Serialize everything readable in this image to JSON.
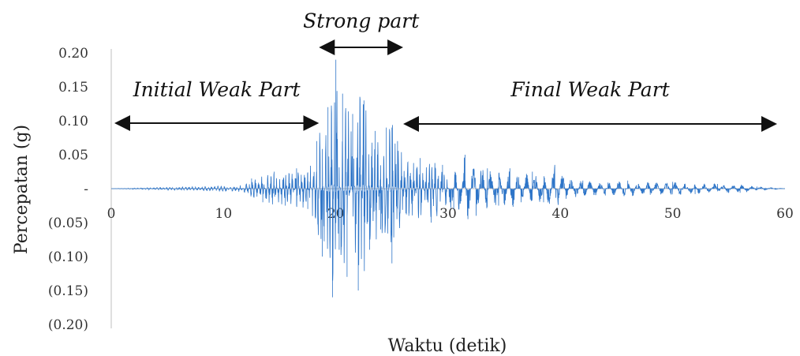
{
  "chart_data": {
    "type": "line",
    "title": "",
    "xlabel": "Waktu (detik)",
    "ylabel": "Percepatan (g)",
    "xlim": [
      0,
      60
    ],
    "ylim": [
      -0.2,
      0.2
    ],
    "x_ticks": [
      0,
      10,
      20,
      30,
      40,
      50,
      60
    ],
    "x_tick_labels": [
      "0",
      "10",
      "20",
      "30",
      "40",
      "50",
      "60"
    ],
    "y_ticks": [
      0.2,
      0.15,
      0.1,
      0.05,
      0,
      -0.05,
      -0.1,
      -0.15,
      -0.2
    ],
    "y_tick_labels": [
      "0.20",
      "0.15",
      "0.10",
      "0.05",
      "-",
      "(0.05)",
      "(0.10)",
      "(0.15)",
      "(0.20)"
    ],
    "grid": false,
    "line_color": "#2e75c8",
    "annotations": [
      {
        "text": "Initial Weak Part",
        "from_x": 0,
        "to_x": 18.5
      },
      {
        "text": "Strong part",
        "from_x": 18.5,
        "to_x": 26
      },
      {
        "text": "Final Weak Part",
        "from_x": 26,
        "to_x": 60
      }
    ],
    "series": [
      {
        "x": [
          0,
          11.5,
          12.5,
          13.5,
          14.5,
          15.5,
          16.5,
          17.5,
          18.3,
          18.8,
          19.3,
          19.7,
          20.0,
          20.3,
          20.6,
          21.0,
          21.5,
          22.0,
          22.5,
          23.0,
          23.5,
          24.0,
          24.5,
          25.0,
          25.5,
          26.5,
          27.5,
          28.5,
          29.5,
          30.5,
          31.5,
          32.5,
          33.5,
          34.5,
          35.5,
          36.5,
          37.5,
          38.5,
          39.5,
          40.5,
          42.0,
          44.0,
          46.0,
          48.0,
          50.0,
          52.0,
          54.0,
          56.0,
          57.5,
          60
        ],
        "y": [
          0,
          0.005,
          0.015,
          -0.02,
          0.025,
          -0.025,
          0.03,
          -0.03,
          0.07,
          -0.1,
          0.12,
          -0.16,
          0.19,
          -0.09,
          0.14,
          -0.13,
          0.11,
          -0.15,
          0.13,
          -0.09,
          0.085,
          -0.06,
          0.09,
          -0.11,
          0.07,
          -0.04,
          0.045,
          -0.05,
          0.035,
          -0.03,
          0.05,
          -0.04,
          0.03,
          -0.025,
          0.03,
          -0.02,
          0.025,
          -0.02,
          0.035,
          -0.015,
          0.012,
          -0.01,
          0.012,
          -0.009,
          0.01,
          -0.008,
          0.007,
          -0.006,
          0.003,
          0
        ]
      }
    ]
  }
}
